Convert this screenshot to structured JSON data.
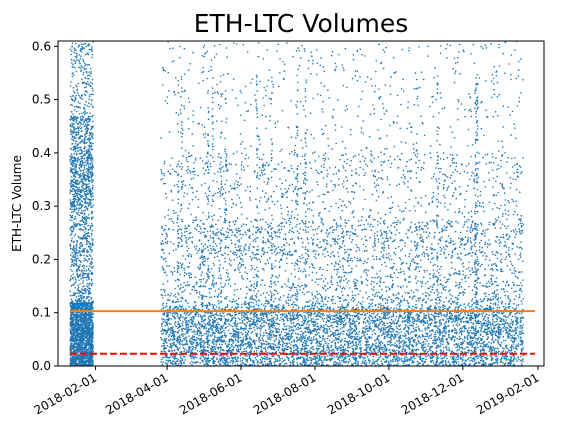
{
  "chart_data": {
    "type": "scatter",
    "title": "ETH-LTC Volumes",
    "xlabel": "",
    "ylabel": "ETH-LTC Volume",
    "x_type": "date",
    "xlim": [
      "2018-01-01",
      "2019-02-06"
    ],
    "ylim": [
      0.0,
      0.61
    ],
    "x_ticks": [
      "2018-02-01",
      "2018-04-01",
      "2018-06-01",
      "2018-08-01",
      "2018-10-01",
      "2018-12-01",
      "2019-02-01"
    ],
    "y_ticks": [
      0.0,
      0.1,
      0.2,
      0.3,
      0.4,
      0.5,
      0.6
    ],
    "y_tick_labels": [
      "0.0",
      "0.1",
      "0.2",
      "0.3",
      "0.4",
      "0.5",
      "0.6"
    ],
    "grid": false,
    "legend": "none",
    "point_color": "#1f77b4",
    "segments": [
      {
        "x_start": "2018-01-11",
        "x_end": "2018-01-30",
        "kind": "dense-band"
      },
      {
        "x_start": "2018-03-27",
        "x_end": "2019-01-20",
        "kind": "scatter-cloud"
      }
    ],
    "reference_lines": [
      {
        "y": 0.103,
        "color": "#ff7f0e",
        "style": "solid"
      },
      {
        "y": 0.023,
        "color": "#ff0000",
        "style": "dashed"
      }
    ]
  }
}
